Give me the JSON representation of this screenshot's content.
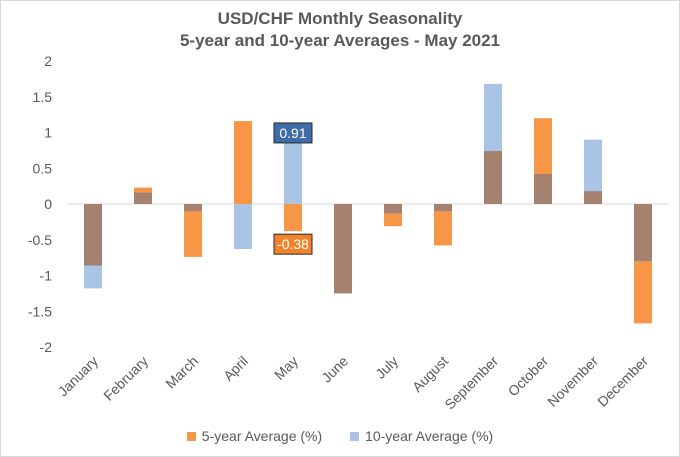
{
  "chart_data": {
    "type": "bar",
    "title": "USD/CHF Monthly Seasonality",
    "subtitle": "5-year and 10-year Averages - May 2021",
    "categories": [
      "January",
      "February",
      "March",
      "April",
      "May",
      "June",
      "July",
      "August",
      "September",
      "October",
      "November",
      "December"
    ],
    "series": [
      {
        "name": "5-year Average (%)",
        "color": "#f79646",
        "values": [
          -0.86,
          0.23,
          -0.74,
          1.16,
          -0.38,
          -1.25,
          -0.31,
          -0.58,
          0.74,
          1.2,
          0.18,
          -1.67
        ]
      },
      {
        "name": "10-year Average (%)",
        "color": "#a9c4e4",
        "values": [
          -1.18,
          0.16,
          -0.1,
          -0.63,
          0.91,
          -1.25,
          -0.13,
          -0.1,
          1.68,
          0.42,
          0.9,
          -0.8
        ]
      }
    ],
    "overlap_color": "#a58270",
    "ylim": [
      -2,
      2
    ],
    "yticks": [
      -2,
      -1.5,
      -1,
      -0.5,
      0,
      0.5,
      1,
      1.5,
      2
    ],
    "ytick_labels": [
      "-2",
      "-1.5",
      "-1",
      "-0.5",
      "0",
      "0.5",
      "1",
      "1.5",
      "2"
    ],
    "callouts": [
      {
        "category": "May",
        "series": "10-year Average (%)",
        "label": "0.91",
        "color": "#3d6ea8"
      },
      {
        "category": "May",
        "series": "5-year Average (%)",
        "label": "-0.38",
        "color": "#f0842d"
      }
    ],
    "legend_position": "bottom"
  }
}
